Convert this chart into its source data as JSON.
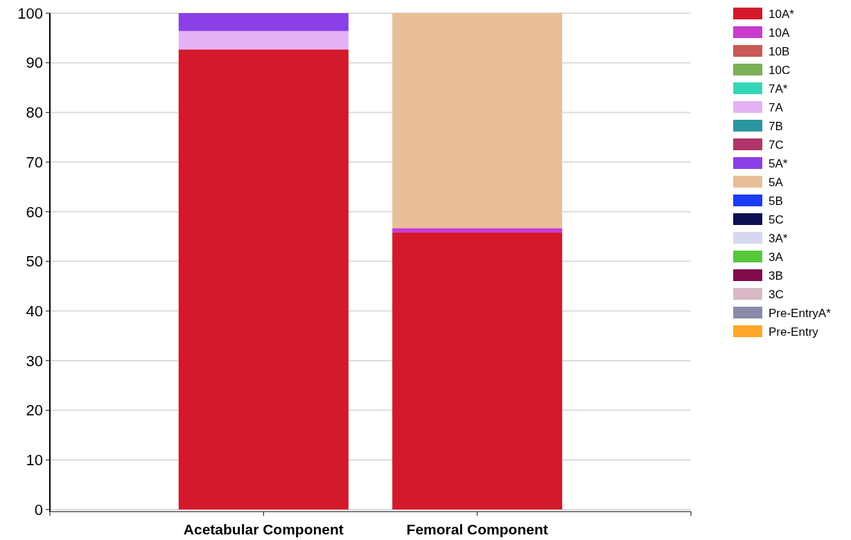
{
  "chart_data": {
    "type": "bar",
    "stacked": true,
    "categories": [
      "Acetabular Component",
      "Femoral Component"
    ],
    "ylim": [
      0,
      100
    ],
    "yticks": [
      0,
      10,
      20,
      30,
      40,
      50,
      60,
      70,
      80,
      90,
      100
    ],
    "grid": "y",
    "legend": "top right",
    "series": [
      {
        "name": "10A*",
        "color": "#d4192c",
        "values": [
          92.7,
          55.8
        ]
      },
      {
        "name": "10A",
        "color": "#c93bcf",
        "values": [
          0,
          0.9
        ]
      },
      {
        "name": "10B",
        "color": "#c95a55",
        "values": [
          0,
          0
        ]
      },
      {
        "name": "10C",
        "color": "#7baf55",
        "values": [
          0,
          0
        ]
      },
      {
        "name": "7A*",
        "color": "#35d6b7",
        "values": [
          0,
          0
        ]
      },
      {
        "name": "7A",
        "color": "#e5b2f5",
        "values": [
          3.7,
          0
        ]
      },
      {
        "name": "7B",
        "color": "#2a969e",
        "values": [
          0,
          0
        ]
      },
      {
        "name": "7C",
        "color": "#b0346a",
        "values": [
          0,
          0
        ]
      },
      {
        "name": "5A*",
        "color": "#8a3fe6",
        "values": [
          3.6,
          0
        ]
      },
      {
        "name": "5A",
        "color": "#e8bf98",
        "values": [
          0,
          43.3
        ]
      },
      {
        "name": "5B",
        "color": "#1a3cf5",
        "values": [
          0,
          0
        ]
      },
      {
        "name": "5C",
        "color": "#0c0f52",
        "values": [
          0,
          0
        ]
      },
      {
        "name": "3A*",
        "color": "#d6d8f0",
        "values": [
          0,
          0
        ]
      },
      {
        "name": "3A",
        "color": "#55c73b",
        "values": [
          0,
          0
        ]
      },
      {
        "name": "3B",
        "color": "#820a4a",
        "values": [
          0,
          0
        ]
      },
      {
        "name": "3C",
        "color": "#d8b8c6",
        "values": [
          0,
          0
        ]
      },
      {
        "name": "Pre-EntryA*",
        "color": "#8a8ba8",
        "values": [
          0,
          0
        ]
      },
      {
        "name": "Pre-Entry",
        "color": "#fea72a",
        "values": [
          0,
          0
        ]
      }
    ]
  }
}
